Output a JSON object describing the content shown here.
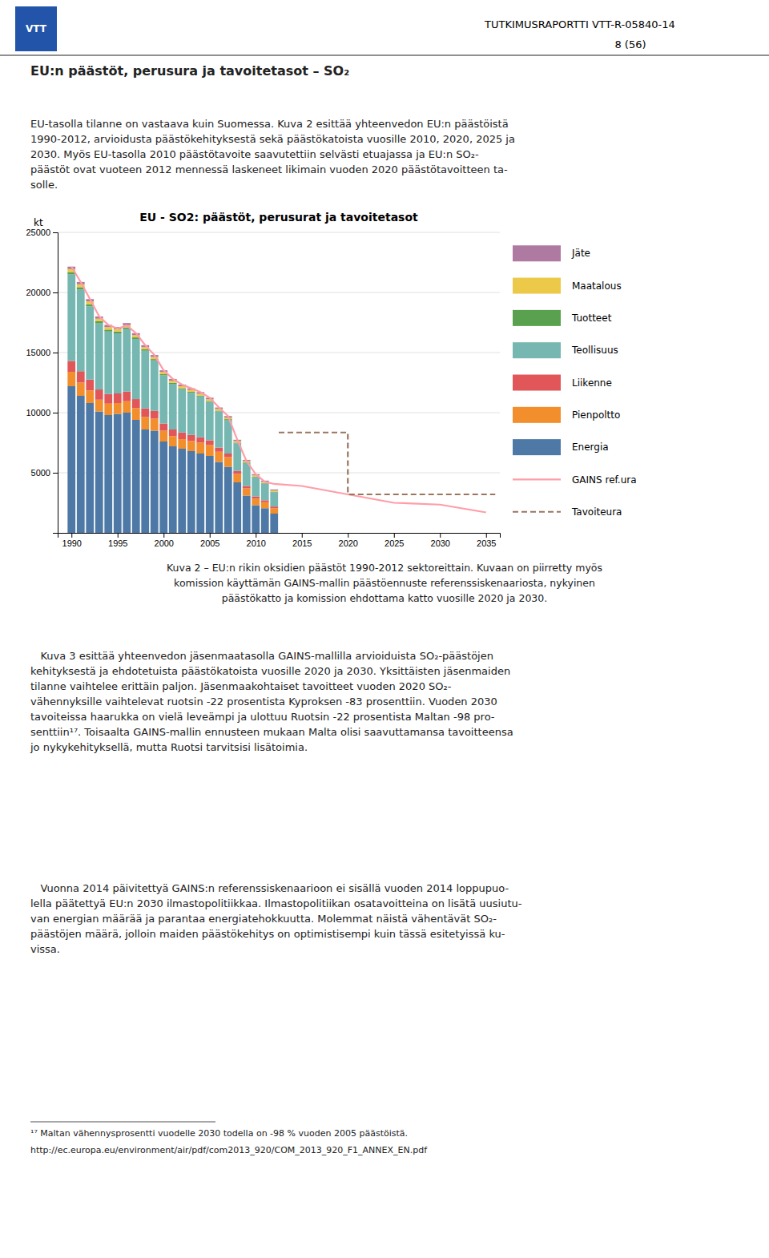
{
  "page": {
    "logo": "VTT",
    "header_right": "TUTKIMUSRAPORTTI VTT-R-05840-14",
    "header_page": "8 (56)",
    "section_title": "EU:n päästöt, perusura ja tavoitetasot – SO₂",
    "para1": "EU-tasolla tilanne on vastaava kuin Suomessa. Kuva 2 esittää yhteenvedon EU:n päästöistä\n1990-2012, arvioidusta päästökehityksestä sekä päästökatoista vuosille 2010, 2020, 2025 ja\n2030. Myös EU-tasolla 2010 päästötavoite saavutettiin selvästi etuajassa ja EU:n SO₂-\npäästöt ovat vuoteen 2012 mennessä laskeneet likimain vuoden 2020 päästötavoitteen ta-\nsolle.",
    "caption": "Kuva 2 – EU:n rikin oksidien päästöt 1990-2012 sektoreittain. Kuvaan on piirretty myös\nkomission käyttämän GAINS-mallin päästöennuste referenssiskenaariosta, nykyinen\npäästökatto ja komission ehdottama katto vuosille 2020 ja 2030.",
    "body1": "   Kuva 3 esittää yhteenvedon jäsenmaatasolla GAINS-mallilla arvioiduista SO₂-päästöjen\nkehityksestä ja ehdotetuista päästökatoista vuosille 2020 ja 2030. Yksittäisten jäsenmaiden\ntilanne vaihtelee erittäin paljon. Jäsenmaakohtaiset tavoitteet vuoden 2020 SO₂-\nvähennyksille vaihtelevat ruotsin -22 prosentista Kyproksen -83 prosenttiin. Vuoden 2030\ntavoiteissa haarukka on vielä leveämpi ja ulottuu Ruotsin -22 prosentista Maltan -98 pro-\nsenttiin¹⁷. Toisaalta GAINS-mallin ennusteen mukaan Malta olisi saavuttamansa tavoitteensa\njo nykykehityksellä, mutta Ruotsi tarvitsisi lisätoimia.",
    "body2": "   Vuonna 2014 päivitettyä GAINS:n referenssiskenaarioon ei sisällä vuoden 2014 loppupuo-\nlella päätettyä EU:n 2030 ilmastopolitiikkaa. Ilmastopolitiikan osatavoitteina on lisätä uusiutu-\nvan energian määrää ja parantaa energiatehokkuutta. Molemmat näistä vähentävät SO₂-\npäästöjen määrä, jolloin maiden päästökehitys on optimistisempi kuin tässä esitetyissä ku-\nvissa.",
    "footnote_num": "¹⁷ Maltan vähennysprosentti vuodelle 2030 todella on -98 % vuoden 2005 päästöistä.",
    "footnote_url": "http://ec.europa.eu/environment/air/pdf/com2013_920/COM_2013_920_F1_ANNEX_EN.pdf"
  },
  "chart_data": {
    "type": "bar",
    "stacked": true,
    "title": "EU - SO2: päästöt, perusurat ja tavoitetasot",
    "ylabel": "kt",
    "grid": true,
    "legend": "right",
    "x": [
      1990,
      1991,
      1992,
      1993,
      1994,
      1995,
      1996,
      1997,
      1998,
      1999,
      2000,
      2001,
      2002,
      2003,
      2004,
      2005,
      2006,
      2007,
      2008,
      2009,
      2010,
      2011,
      2012
    ],
    "xlim": [
      1988.5,
      2036.5
    ],
    "xticks": [
      1990,
      1995,
      2000,
      2005,
      2010,
      2015,
      2020,
      2025,
      2030,
      2035
    ],
    "ylim": [
      0,
      25000
    ],
    "yticks": [
      5000,
      10000,
      15000,
      20000,
      25000
    ],
    "series": [
      {
        "name": "Energia",
        "values": [
          12200,
          11400,
          10800,
          10100,
          9800,
          9900,
          10000,
          9400,
          8600,
          8500,
          7600,
          7200,
          7000,
          6800,
          6600,
          6400,
          5900,
          5500,
          4200,
          3100,
          2300,
          2050,
          1600
        ]
      },
      {
        "name": "Pienpoltto",
        "values": [
          1200,
          1100,
          1050,
          980,
          950,
          900,
          950,
          980,
          1050,
          1000,
          900,
          850,
          800,
          850,
          900,
          900,
          850,
          800,
          700,
          600,
          550,
          500,
          450
        ]
      },
      {
        "name": "Liikenne",
        "values": [
          900,
          950,
          900,
          850,
          800,
          800,
          800,
          750,
          700,
          650,
          600,
          550,
          550,
          500,
          450,
          400,
          350,
          300,
          250,
          200,
          180,
          160,
          140
        ]
      },
      {
        "name": "Teollisuus",
        "values": [
          7200,
          6800,
          6100,
          5500,
          5200,
          5000,
          5200,
          5000,
          4800,
          4200,
          4000,
          3800,
          3600,
          3500,
          3400,
          3200,
          3000,
          2800,
          2300,
          1900,
          1600,
          1400,
          1200
        ]
      },
      {
        "name": "Tuotteet",
        "values": [
          200,
          190,
          180,
          170,
          160,
          150,
          140,
          130,
          120,
          110,
          100,
          90,
          85,
          80,
          75,
          70,
          65,
          60,
          55,
          50,
          45,
          40,
          35
        ]
      },
      {
        "name": "Maatalous",
        "values": [
          250,
          240,
          230,
          220,
          210,
          200,
          195,
          190,
          185,
          180,
          175,
          170,
          165,
          160,
          155,
          150,
          145,
          140,
          130,
          120,
          110,
          105,
          100
        ]
      },
      {
        "name": "Jäte",
        "values": [
          200,
          195,
          190,
          185,
          180,
          175,
          170,
          165,
          160,
          155,
          150,
          145,
          140,
          135,
          130,
          125,
          120,
          115,
          110,
          100,
          95,
          90,
          85
        ]
      },
      {
        "name": "GAINS ref.ura",
        "type": "line",
        "line_style": "solid",
        "x": [
          1990,
          1991,
          1992,
          1993,
          1994,
          1995,
          1996,
          1997,
          1998,
          1999,
          2000,
          2001,
          2002,
          2003,
          2004,
          2005,
          2006,
          2007,
          2008,
          2009,
          2010,
          2011,
          2012,
          2015,
          2020,
          2025,
          2030,
          2035
        ],
        "values": [
          22150,
          20870,
          19450,
          18010,
          17300,
          17000,
          17255,
          16615,
          15615,
          14795,
          13525,
          12805,
          12340,
          12025,
          11710,
          11245,
          10430,
          9715,
          7740,
          5970,
          4880,
          4245,
          4070,
          3900,
          3200,
          2500,
          2350,
          1700
        ]
      },
      {
        "name": "Tavoiteura",
        "type": "line",
        "line_style": "dashed",
        "x": [
          2012.5,
          2020,
          2020,
          2025,
          2030,
          2036
        ],
        "values": [
          8350,
          8350,
          3200,
          3200,
          3200,
          3200
        ]
      }
    ]
  }
}
